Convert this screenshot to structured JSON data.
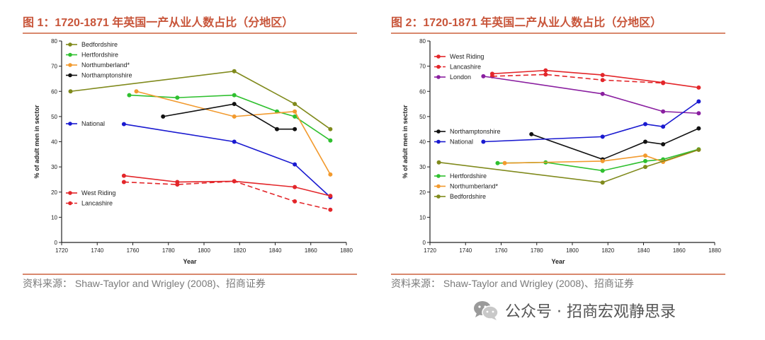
{
  "panels": [
    {
      "title": "图 1：1720-1871 年英国一产从业人数占比（分地区）",
      "source": "资料来源： Shaw-Taylor and Wrigley (2008)、招商证券"
    },
    {
      "title": "图 2：1720-1871 年英国二产从业人数占比（分地区）",
      "source": "资料来源： Shaw-Taylor and Wrigley (2008)、招商证券"
    }
  ],
  "footer": {
    "text": "公众号 · 招商宏观静思录"
  },
  "chart_data": [
    {
      "type": "line",
      "xlabel": "Year",
      "ylabel": "% of adult men in sector",
      "xlim": [
        1720,
        1880
      ],
      "ylim": [
        0,
        80
      ],
      "xticks": [
        1720,
        1740,
        1760,
        1780,
        1800,
        1820,
        1840,
        1860,
        1880
      ],
      "yticks": [
        0,
        10,
        20,
        30,
        40,
        50,
        60,
        70,
        80
      ],
      "series": [
        {
          "name": "Bedfordshire",
          "color": "#808a1c",
          "dashed": false,
          "x": [
            1725,
            1817,
            1851,
            1871
          ],
          "y": [
            60,
            68,
            55,
            45
          ]
        },
        {
          "name": "Hertfordshire",
          "color": "#2fc02f",
          "dashed": false,
          "x": [
            1758,
            1785,
            1817,
            1841,
            1851,
            1871
          ],
          "y": [
            58.5,
            57.5,
            58.5,
            52,
            50,
            40.5
          ]
        },
        {
          "name": "Northumberland*",
          "color": "#f29a2e",
          "dashed": false,
          "x": [
            1762,
            1817,
            1851,
            1871
          ],
          "y": [
            60,
            50,
            52,
            27
          ]
        },
        {
          "name": "Northamptonshire",
          "color": "#111111",
          "dashed": false,
          "x": [
            1777,
            1817,
            1841,
            1851
          ],
          "y": [
            50,
            55,
            45,
            45
          ]
        },
        {
          "name": "National",
          "color": "#1a1ad0",
          "dashed": false,
          "x": [
            1755,
            1817,
            1851,
            1871
          ],
          "y": [
            47,
            40,
            31,
            18
          ]
        },
        {
          "name": "West Riding",
          "color": "#e3262a",
          "dashed": false,
          "x": [
            1755,
            1785,
            1817,
            1851,
            1871
          ],
          "y": [
            26.5,
            24,
            24.3,
            22,
            18.5
          ]
        },
        {
          "name": "Lancashire",
          "color": "#e3262a",
          "dashed": true,
          "x": [
            1755,
            1785,
            1817,
            1851,
            1871
          ],
          "y": [
            24,
            23,
            24.3,
            16.3,
            13
          ]
        }
      ],
      "legend_groups": [
        {
          "placement": "top-left",
          "series": [
            "Bedfordshire",
            "Hertfordshire",
            "Northumberland*",
            "Northamptonshire"
          ]
        },
        {
          "placement": "middle-left",
          "series": [
            "National"
          ]
        },
        {
          "placement": "bottom-left",
          "series": [
            "West Riding",
            "Lancashire"
          ]
        }
      ]
    },
    {
      "type": "line",
      "xlabel": "Year",
      "ylabel": "% of adult men in sector",
      "xlim": [
        1720,
        1880
      ],
      "ylim": [
        0,
        80
      ],
      "xticks": [
        1720,
        1740,
        1760,
        1780,
        1800,
        1820,
        1840,
        1860,
        1880
      ],
      "yticks": [
        0,
        10,
        20,
        30,
        40,
        50,
        60,
        70,
        80
      ],
      "series": [
        {
          "name": "West Riding",
          "color": "#e3262a",
          "dashed": false,
          "x": [
            1755,
            1785,
            1817,
            1851,
            1871
          ],
          "y": [
            67,
            68.3,
            66.5,
            63.5,
            61.5
          ]
        },
        {
          "name": "Lancashire",
          "color": "#e3262a",
          "dashed": true,
          "x": [
            1755,
            1785,
            1817,
            1851
          ],
          "y": [
            66,
            66.7,
            64.5,
            63.3
          ]
        },
        {
          "name": "London",
          "color": "#8a1fa0",
          "dashed": false,
          "x": [
            1750,
            1817,
            1851,
            1871
          ],
          "y": [
            66,
            59,
            52,
            51.3
          ]
        },
        {
          "name": "Northamptonshire",
          "color": "#111111",
          "dashed": false,
          "x": [
            1777,
            1817,
            1841,
            1851,
            1871
          ],
          "y": [
            43,
            33,
            40,
            39,
            45.3
          ]
        },
        {
          "name": "National",
          "color": "#1a1ad0",
          "dashed": false,
          "x": [
            1750,
            1817,
            1841,
            1851,
            1871
          ],
          "y": [
            40,
            42,
            47,
            46,
            56
          ]
        },
        {
          "name": "Hertfordshire",
          "color": "#2fc02f",
          "dashed": false,
          "x": [
            1758,
            1785,
            1817,
            1841,
            1851,
            1871
          ],
          "y": [
            31.5,
            31.8,
            28.5,
            32.3,
            33,
            37
          ]
        },
        {
          "name": "Northumberland*",
          "color": "#f29a2e",
          "dashed": false,
          "x": [
            1762,
            1817,
            1841,
            1851,
            1871
          ],
          "y": [
            31.5,
            32.3,
            34.5,
            32,
            36.8
          ]
        },
        {
          "name": "Bedfordshire",
          "color": "#808a1c",
          "dashed": false,
          "x": [
            1725,
            1817,
            1841,
            1871
          ],
          "y": [
            31.8,
            23.8,
            30,
            36.8
          ]
        }
      ],
      "legend_groups": [
        {
          "placement": "top-left",
          "series": [
            "West Riding",
            "Lancashire",
            "London"
          ]
        },
        {
          "placement": "middle-left",
          "series": [
            "Northamptonshire",
            "National"
          ]
        },
        {
          "placement": "bottom-left",
          "series": [
            "Hertfordshire",
            "Northumberland*",
            "Bedfordshire"
          ]
        }
      ]
    }
  ]
}
